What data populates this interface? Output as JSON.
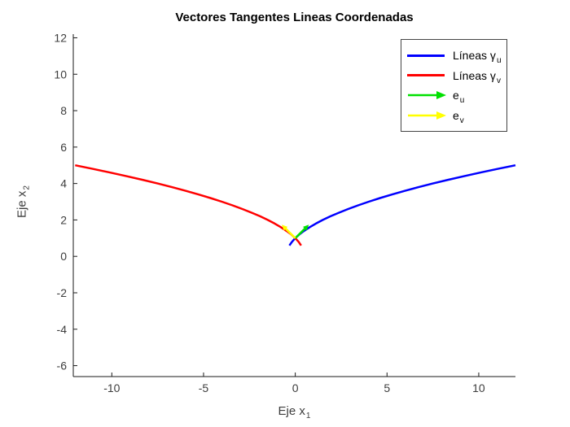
{
  "title": "Vectores Tangentes Lineas Coordenadas",
  "axes": {
    "xlabel": {
      "text": "Eje x",
      "sub": "1"
    },
    "ylabel": {
      "text": "Eje x",
      "sub": "2"
    }
  },
  "legend": {
    "items": [
      {
        "id": "lineas-gamma-u",
        "label": "Líneas γ",
        "sub": "u",
        "color": "#0000ff",
        "swatch": "line"
      },
      {
        "id": "lineas-gamma-v",
        "label": "Líneas γ",
        "sub": "v",
        "color": "#ff0000",
        "swatch": "line"
      },
      {
        "id": "e-u",
        "label": "e",
        "sub": "u",
        "color": "#00e000",
        "swatch": "arrow"
      },
      {
        "id": "e-v",
        "label": "e",
        "sub": "v",
        "color": "#ffff00",
        "swatch": "arrow"
      }
    ]
  },
  "chart_data": {
    "type": "line",
    "title": "Vectores Tangentes Lineas Coordenadas",
    "xlabel": "Eje x_1",
    "ylabel": "Eje x_2",
    "xlim": [
      -12.1,
      12.0
    ],
    "ylim": [
      -6.6,
      12.2
    ],
    "x_ticks": [
      -10,
      -5,
      0,
      5,
      10
    ],
    "y_ticks": [
      -6,
      -4,
      -2,
      0,
      2,
      4,
      6,
      8,
      10,
      12
    ],
    "grid": false,
    "legend_position": "upper-right",
    "axis_color": "#1a1a1a",
    "tick_label_color": "#3d3d3d",
    "series": [
      {
        "id": "lineas-gamma-u",
        "name": "Líneas γ_u",
        "color": "#0000ff",
        "points": [
          [
            -0.32,
            0.6
          ],
          [
            -0.18,
            0.8
          ],
          [
            0,
            1
          ],
          [
            0.22,
            1.2
          ],
          [
            0.48,
            1.4
          ],
          [
            0.78,
            1.6
          ],
          [
            1.12,
            1.8
          ],
          [
            1.5,
            2
          ],
          [
            1.92,
            2.2
          ],
          [
            2.38,
            2.4
          ],
          [
            2.88,
            2.6
          ],
          [
            3.42,
            2.8
          ],
          [
            4,
            3
          ],
          [
            4.62,
            3.2
          ],
          [
            5.28,
            3.4
          ],
          [
            5.98,
            3.6
          ],
          [
            6.72,
            3.8
          ],
          [
            7.5,
            4
          ],
          [
            8.32,
            4.2
          ],
          [
            9.18,
            4.4
          ],
          [
            10.08,
            4.6
          ],
          [
            11.02,
            4.8
          ],
          [
            12,
            5
          ]
        ]
      },
      {
        "id": "lineas-gamma-v",
        "name": "Líneas γ_v",
        "color": "#ff0000",
        "points": [
          [
            0.32,
            0.6
          ],
          [
            0.18,
            0.8
          ],
          [
            0,
            1
          ],
          [
            -0.22,
            1.2
          ],
          [
            -0.48,
            1.4
          ],
          [
            -0.78,
            1.6
          ],
          [
            -1.12,
            1.8
          ],
          [
            -1.5,
            2
          ],
          [
            -1.92,
            2.2
          ],
          [
            -2.38,
            2.4
          ],
          [
            -2.88,
            2.6
          ],
          [
            -3.42,
            2.8
          ],
          [
            -4,
            3
          ],
          [
            -4.62,
            3.2
          ],
          [
            -5.28,
            3.4
          ],
          [
            -5.98,
            3.6
          ],
          [
            -6.72,
            3.8
          ],
          [
            -7.5,
            4
          ],
          [
            -8.32,
            4.2
          ],
          [
            -9.18,
            4.4
          ],
          [
            -10.08,
            4.6
          ],
          [
            -11.02,
            4.8
          ],
          [
            -12,
            5
          ]
        ]
      }
    ],
    "arrows": [
      {
        "id": "e-u",
        "name": "e_u",
        "color": "#00e000",
        "from": [
          0,
          1
        ],
        "to": [
          0.74,
          1.74
        ]
      },
      {
        "id": "e-v",
        "name": "e_v",
        "color": "#ffff00",
        "from": [
          0,
          1
        ],
        "to": [
          -0.74,
          1.74
        ]
      }
    ]
  }
}
